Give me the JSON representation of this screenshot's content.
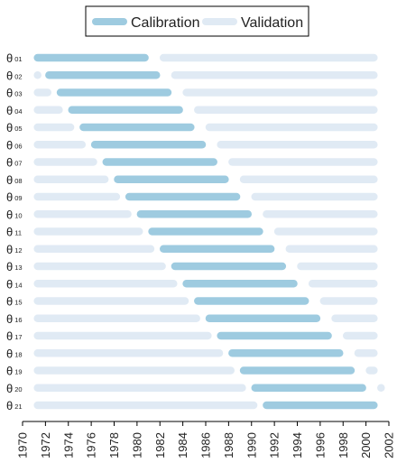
{
  "chart_data": {
    "type": "bar",
    "subtype": "timeline-gantt",
    "legend": {
      "placement": "top-center",
      "items": [
        {
          "name": "Calibration",
          "color": "#9ecbe0"
        },
        {
          "name": "Validation",
          "color": "#e0eaf4"
        }
      ]
    },
    "row_labels": [
      {
        "greek": "θ",
        "sub": "01"
      },
      {
        "greek": "θ",
        "sub": "02"
      },
      {
        "greek": "θ",
        "sub": "03"
      },
      {
        "greek": "θ",
        "sub": "04"
      },
      {
        "greek": "θ",
        "sub": "05"
      },
      {
        "greek": "θ",
        "sub": "06"
      },
      {
        "greek": "θ",
        "sub": "07"
      },
      {
        "greek": "θ",
        "sub": "08"
      },
      {
        "greek": "θ",
        "sub": "09"
      },
      {
        "greek": "θ",
        "sub": "10"
      },
      {
        "greek": "θ",
        "sub": "11"
      },
      {
        "greek": "θ",
        "sub": "12"
      },
      {
        "greek": "θ",
        "sub": "13"
      },
      {
        "greek": "θ",
        "sub": "14"
      },
      {
        "greek": "θ",
        "sub": "15"
      },
      {
        "greek": "θ",
        "sub": "16"
      },
      {
        "greek": "θ",
        "sub": "17"
      },
      {
        "greek": "θ",
        "sub": "18"
      },
      {
        "greek": "θ",
        "sub": "19"
      },
      {
        "greek": "θ",
        "sub": "20"
      },
      {
        "greek": "θ",
        "sub": "21"
      }
    ],
    "series": [
      {
        "name": "Calibration",
        "ranges": [
          [
            1971,
            1981
          ],
          [
            1972,
            1982
          ],
          [
            1973,
            1983
          ],
          [
            1974,
            1984
          ],
          [
            1975,
            1985
          ],
          [
            1976,
            1986
          ],
          [
            1977,
            1987
          ],
          [
            1978,
            1988
          ],
          [
            1979,
            1989
          ],
          [
            1980,
            1990
          ],
          [
            1981,
            1991
          ],
          [
            1982,
            1992
          ],
          [
            1983,
            1993
          ],
          [
            1984,
            1994
          ],
          [
            1985,
            1995
          ],
          [
            1986,
            1996
          ],
          [
            1987,
            1997
          ],
          [
            1988,
            1998
          ],
          [
            1989,
            1999
          ],
          [
            1990,
            2000
          ],
          [
            1991,
            2001
          ]
        ]
      },
      {
        "name": "Validation",
        "ranges": [
          [
            [
              1982,
              2001
            ]
          ],
          [
            [
              1971,
              1971.5
            ],
            [
              1983,
              2001
            ]
          ],
          [
            [
              1971,
              1972.5
            ],
            [
              1984,
              2001
            ]
          ],
          [
            [
              1971,
              1973.5
            ],
            [
              1985,
              2001
            ]
          ],
          [
            [
              1971,
              1974.5
            ],
            [
              1986,
              2001
            ]
          ],
          [
            [
              1971,
              1975.5
            ],
            [
              1987,
              2001
            ]
          ],
          [
            [
              1971,
              1976.5
            ],
            [
              1988,
              2001
            ]
          ],
          [
            [
              1971,
              1977.5
            ],
            [
              1989,
              2001
            ]
          ],
          [
            [
              1971,
              1978.5
            ],
            [
              1990,
              2001
            ]
          ],
          [
            [
              1971,
              1979.5
            ],
            [
              1991,
              2001
            ]
          ],
          [
            [
              1971,
              1980.5
            ],
            [
              1992,
              2001
            ]
          ],
          [
            [
              1971,
              1981.5
            ],
            [
              1993,
              2001
            ]
          ],
          [
            [
              1971,
              1982.5
            ],
            [
              1994,
              2001
            ]
          ],
          [
            [
              1971,
              1983.5
            ],
            [
              1995,
              2001
            ]
          ],
          [
            [
              1971,
              1984.5
            ],
            [
              1996,
              2001
            ]
          ],
          [
            [
              1971,
              1985.5
            ],
            [
              1997,
              2001
            ]
          ],
          [
            [
              1971,
              1986.5
            ],
            [
              1998,
              2001
            ]
          ],
          [
            [
              1971,
              1987.5
            ],
            [
              1999,
              2001
            ]
          ],
          [
            [
              1971,
              1988.5
            ],
            [
              2000,
              2001
            ]
          ],
          [
            [
              1971,
              1989.5
            ],
            [
              2001,
              2001.5
            ]
          ],
          [
            [
              1971,
              1990.5
            ]
          ]
        ]
      }
    ],
    "xticks": [
      "1970",
      "1972",
      "1974",
      "1976",
      "1978",
      "1980",
      "1982",
      "1984",
      "1986",
      "1988",
      "1990",
      "1992",
      "1994",
      "1996",
      "1998",
      "2000",
      "2002"
    ],
    "xlim": [
      1970,
      2002
    ],
    "grid": false,
    "xlabel": "",
    "ylabel": ""
  }
}
